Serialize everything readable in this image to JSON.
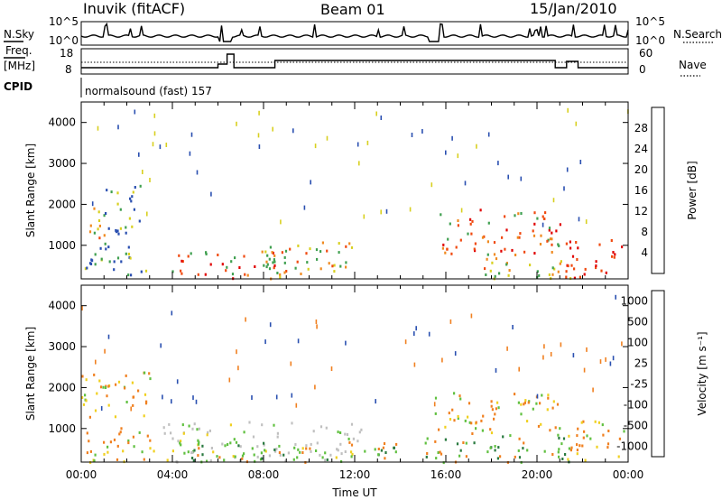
{
  "header": {
    "station": "Inuvik (fitACF)",
    "beam": "Beam 01",
    "date": "15/Jan/2010"
  },
  "summary_panels": {
    "nsky": {
      "label": "N.Sky",
      "ticks": [
        "10^5",
        "10^0"
      ]
    },
    "nsearch": {
      "label": "N.Search",
      "ticks": [
        "10^5",
        "10^0"
      ]
    },
    "freq": {
      "label_line1": "Freq.",
      "label_line2": "[MHz]",
      "ticks": [
        "18",
        "8"
      ]
    },
    "nave": {
      "label": "Nave",
      "ticks": [
        "60",
        "0"
      ]
    },
    "cpid": {
      "label": "CPID",
      "value": "normalsound (fast) 157"
    }
  },
  "chart_data": [
    {
      "type": "heatmap",
      "title": "",
      "xlabel": "",
      "ylabel": "Slant Range [km]",
      "xlim": [
        0,
        24
      ],
      "ylim": [
        180,
        4500
      ],
      "yticks": [
        "1000",
        "2000",
        "3000",
        "4000"
      ],
      "colorbar": {
        "label": "Power [dB]",
        "ticks": [
          "4",
          "8",
          "12",
          "16",
          "20",
          "24",
          "28"
        ],
        "range": [
          0,
          30
        ],
        "colors": [
          "#1018e0",
          "#2a4fb0",
          "#3a7a70",
          "#40a050",
          "#d8d020",
          "#f08a20",
          "#f04a10",
          "#e00000"
        ]
      },
      "regions": [
        {
          "t": [
            0.0,
            1.2
          ],
          "r": [
            1200,
            2000
          ],
          "level": "mid"
        },
        {
          "t": [
            1.0,
            2.8
          ],
          "r": [
            1300,
            2500
          ],
          "level": "low"
        },
        {
          "t": [
            0.0,
            3.0
          ],
          "r": [
            250,
            1100
          ],
          "level": "low"
        },
        {
          "t": [
            3.5,
            9.0
          ],
          "r": [
            200,
            900
          ],
          "level": "high"
        },
        {
          "t": [
            8.0,
            12.0
          ],
          "r": [
            250,
            1100
          ],
          "level": "mid"
        },
        {
          "t": [
            15.5,
            21.0
          ],
          "r": [
            800,
            1900
          ],
          "level": "high"
        },
        {
          "t": [
            17.5,
            21.5
          ],
          "r": [
            200,
            800
          ],
          "level": "mid"
        },
        {
          "t": [
            21.2,
            23.8
          ],
          "r": [
            200,
            1200
          ],
          "level": "veryhigh"
        }
      ]
    },
    {
      "type": "heatmap",
      "title": "",
      "xlabel": "Time UT",
      "ylabel": "Slant Range [km]",
      "xlim": [
        0,
        24
      ],
      "ylim": [
        180,
        4500
      ],
      "xticks": [
        "00:00",
        "04:00",
        "08:00",
        "12:00",
        "16:00",
        "20:00",
        "00:00"
      ],
      "yticks": [
        "1000",
        "2000",
        "3000",
        "4000"
      ],
      "colorbar": {
        "label": "Velocity [m s⁻¹]",
        "ticks": [
          "1000",
          "500",
          "100",
          "25",
          "-25",
          "-100",
          "-500",
          "-1000"
        ],
        "range": [
          1000,
          -1000
        ],
        "colors": [
          "#1a2dd0",
          "#2a50b0",
          "#2a7a40",
          "#60c040",
          "#c0c0c0",
          "#f0d020",
          "#f08020",
          "#f04a10",
          "#e00000"
        ]
      },
      "regions": [
        {
          "t": [
            0.0,
            3.0
          ],
          "r": [
            1200,
            2400
          ],
          "level": "orange"
        },
        {
          "t": [
            0.0,
            3.2
          ],
          "r": [
            200,
            1100
          ],
          "level": "orange"
        },
        {
          "t": [
            3.5,
            12.5
          ],
          "r": [
            200,
            1200
          ],
          "level": "gray"
        },
        {
          "t": [
            4.0,
            14.0
          ],
          "r": [
            200,
            700
          ],
          "level": "green"
        },
        {
          "t": [
            15.5,
            21.0
          ],
          "r": [
            900,
            1900
          ],
          "level": "orange"
        },
        {
          "t": [
            15.0,
            21.5
          ],
          "r": [
            200,
            900
          ],
          "level": "green"
        },
        {
          "t": [
            21.2,
            23.8
          ],
          "r": [
            200,
            1200
          ],
          "level": "orange"
        }
      ]
    }
  ]
}
